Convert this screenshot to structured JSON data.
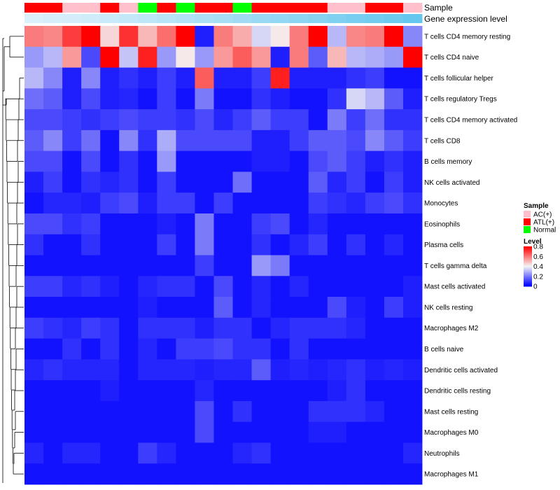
{
  "chart_data": {
    "type": "heatmap",
    "annotation_rows": [
      {
        "name": "Sample",
        "kind": "sample"
      },
      {
        "name": "Gene expression level",
        "kind": "expression"
      }
    ],
    "sample_groups": [
      "ATL(+)",
      "ATL(+)",
      "AC(+)",
      "AC(+)",
      "ATL(+)",
      "AC(+)",
      "Normal",
      "ATL(+)",
      "Normal",
      "ATL(+)",
      "ATL(+)",
      "Normal",
      "ATL(+)",
      "ATL(+)",
      "ATL(+)",
      "ATL(+)",
      "AC(+)",
      "AC(+)",
      "ATL(+)",
      "ATL(+)",
      "AC(+)"
    ],
    "expression_level": [
      0.05,
      0.08,
      0.1,
      0.14,
      0.18,
      0.22,
      0.27,
      0.31,
      0.36,
      0.4,
      0.45,
      0.5,
      0.55,
      0.6,
      0.65,
      0.7,
      0.75,
      0.8,
      0.85,
      0.9,
      0.95
    ],
    "rows": [
      "T cells CD4 memory resting",
      "T cells CD4 naive",
      "T cells follicular helper",
      "T cells regulatory  Tregs",
      "T cells CD4 memory activated",
      "T cells CD8",
      "B cells memory",
      "NK cells activated",
      "Monocytes",
      "Eosinophils",
      "Plasma cells",
      "T cells gamma delta",
      "Mast cells activated",
      "NK cells resting",
      "Macrophages M2",
      "B cells naive",
      "Dendritic cells activated",
      "Dendritic cells resting",
      "Mast cells resting",
      "Macrophages M0",
      "Neutrophils",
      "Macrophages M1"
    ],
    "values": [
      [
        0.6,
        0.58,
        0.7,
        0.8,
        0.45,
        0.72,
        0.5,
        0.62,
        0.8,
        0.05,
        0.6,
        0.52,
        0.35,
        0.42,
        0.6,
        0.8,
        0.3,
        0.58,
        0.6,
        0.8,
        0.22
      ],
      [
        0.25,
        0.3,
        0.55,
        0.12,
        0.8,
        0.32,
        0.75,
        0.25,
        0.42,
        0.25,
        0.55,
        0.65,
        0.55,
        0.05,
        0.6,
        0.15,
        0.5,
        0.3,
        0.28,
        0.25,
        0.8
      ],
      [
        0.3,
        0.22,
        0.05,
        0.22,
        0.05,
        0.08,
        0.05,
        0.1,
        0.05,
        0.65,
        0.05,
        0.05,
        0.1,
        0.75,
        0.05,
        0.05,
        0.05,
        0.08,
        0.1,
        0.03,
        0.03
      ],
      [
        0.18,
        0.15,
        0.05,
        0.12,
        0.05,
        0.06,
        0.03,
        0.1,
        0.03,
        0.2,
        0.03,
        0.03,
        0.08,
        0.05,
        0.03,
        0.03,
        0.08,
        0.35,
        0.3,
        0.15,
        0.05
      ],
      [
        0.12,
        0.12,
        0.1,
        0.08,
        0.1,
        0.12,
        0.1,
        0.1,
        0.08,
        0.12,
        0.06,
        0.1,
        0.15,
        0.1,
        0.1,
        0.03,
        0.2,
        0.1,
        0.18,
        0.08,
        0.08
      ],
      [
        0.15,
        0.22,
        0.1,
        0.18,
        0.03,
        0.22,
        0.08,
        0.28,
        0.12,
        0.12,
        0.12,
        0.12,
        0.05,
        0.05,
        0.1,
        0.15,
        0.15,
        0.12,
        0.22,
        0.15,
        0.1
      ],
      [
        0.12,
        0.12,
        0.03,
        0.12,
        0.03,
        0.08,
        0.03,
        0.25,
        0.03,
        0.03,
        0.03,
        0.03,
        0.05,
        0.05,
        0.03,
        0.12,
        0.15,
        0.1,
        0.05,
        0.08,
        0.05
      ],
      [
        0.05,
        0.1,
        0.03,
        0.08,
        0.06,
        0.08,
        0.03,
        0.1,
        0.03,
        0.03,
        0.03,
        0.18,
        0.03,
        0.03,
        0.03,
        0.15,
        0.06,
        0.1,
        0.03,
        0.1,
        0.05
      ],
      [
        0.03,
        0.06,
        0.06,
        0.05,
        0.1,
        0.12,
        0.05,
        0.1,
        0.1,
        0.03,
        0.1,
        0.03,
        0.03,
        0.03,
        0.03,
        0.1,
        0.08,
        0.06,
        0.1,
        0.12,
        0.08
      ],
      [
        0.12,
        0.12,
        0.08,
        0.1,
        0.03,
        0.03,
        0.03,
        0.05,
        0.03,
        0.2,
        0.03,
        0.03,
        0.1,
        0.12,
        0.03,
        0.06,
        0.03,
        0.03,
        0.03,
        0.03,
        0.03
      ],
      [
        0.08,
        0.03,
        0.03,
        0.08,
        0.03,
        0.03,
        0.03,
        0.1,
        0.03,
        0.2,
        0.03,
        0.03,
        0.08,
        0.03,
        0.06,
        0.1,
        0.03,
        0.08,
        0.03,
        0.06,
        0.03
      ],
      [
        0.03,
        0.03,
        0.03,
        0.03,
        0.03,
        0.03,
        0.03,
        0.03,
        0.03,
        0.1,
        0.03,
        0.03,
        0.25,
        0.2,
        0.03,
        0.03,
        0.03,
        0.03,
        0.03,
        0.03,
        0.03
      ],
      [
        0.1,
        0.1,
        0.06,
        0.08,
        0.05,
        0.03,
        0.06,
        0.08,
        0.08,
        0.03,
        0.12,
        0.03,
        0.06,
        0.03,
        0.06,
        0.03,
        0.03,
        0.03,
        0.03,
        0.03,
        0.05
      ],
      [
        0.03,
        0.03,
        0.03,
        0.03,
        0.03,
        0.03,
        0.05,
        0.03,
        0.03,
        0.03,
        0.15,
        0.03,
        0.06,
        0.03,
        0.03,
        0.03,
        0.12,
        0.05,
        0.03,
        0.1,
        0.05
      ],
      [
        0.1,
        0.08,
        0.06,
        0.1,
        0.08,
        0.03,
        0.08,
        0.08,
        0.08,
        0.05,
        0.08,
        0.08,
        0.03,
        0.06,
        0.08,
        0.08,
        0.08,
        0.06,
        0.03,
        0.03,
        0.03
      ],
      [
        0.03,
        0.03,
        0.08,
        0.03,
        0.08,
        0.03,
        0.06,
        0.03,
        0.1,
        0.1,
        0.12,
        0.08,
        0.08,
        0.03,
        0.08,
        0.03,
        0.03,
        0.03,
        0.03,
        0.03,
        0.03
      ],
      [
        0.06,
        0.08,
        0.06,
        0.06,
        0.06,
        0.03,
        0.06,
        0.06,
        0.06,
        0.05,
        0.06,
        0.06,
        0.15,
        0.05,
        0.06,
        0.05,
        0.06,
        0.08,
        0.05,
        0.06,
        0.05
      ],
      [
        0.03,
        0.03,
        0.03,
        0.03,
        0.05,
        0.03,
        0.03,
        0.03,
        0.03,
        0.06,
        0.03,
        0.03,
        0.03,
        0.03,
        0.03,
        0.03,
        0.05,
        0.08,
        0.03,
        0.03,
        0.03
      ],
      [
        0.03,
        0.03,
        0.03,
        0.03,
        0.03,
        0.03,
        0.03,
        0.03,
        0.03,
        0.12,
        0.03,
        0.08,
        0.03,
        0.03,
        0.03,
        0.08,
        0.08,
        0.08,
        0.06,
        0.03,
        0.03
      ],
      [
        0.03,
        0.03,
        0.03,
        0.03,
        0.03,
        0.03,
        0.03,
        0.03,
        0.03,
        0.12,
        0.03,
        0.03,
        0.03,
        0.03,
        0.03,
        0.05,
        0.05,
        0.03,
        0.03,
        0.03,
        0.03
      ],
      [
        0.06,
        0.03,
        0.06,
        0.06,
        0.03,
        0.03,
        0.1,
        0.06,
        0.03,
        0.03,
        0.03,
        0.06,
        0.08,
        0.03,
        0.03,
        0.03,
        0.03,
        0.03,
        0.03,
        0.03,
        0.06
      ],
      [
        0.03,
        0.03,
        0.03,
        0.03,
        0.03,
        0.03,
        0.03,
        0.03,
        0.03,
        0.03,
        0.03,
        0.03,
        0.03,
        0.03,
        0.03,
        0.03,
        0.03,
        0.03,
        0.03,
        0.03,
        0.03
      ]
    ],
    "color_scale": {
      "low": "#0000ff",
      "mid": "#f5f5f5",
      "high": "#ff0000",
      "min": 0,
      "max": 0.8
    },
    "legend": {
      "sample_title": "Sample",
      "sample_items": [
        {
          "label": "AC(+)",
          "color": "#ffc0cb"
        },
        {
          "label": "ATL(+)",
          "color": "#ff0000"
        },
        {
          "label": "Normal",
          "color": "#00ff00"
        }
      ],
      "level_title": "Level",
      "level_ticks": [
        "0.8",
        "0.6",
        "0.4",
        "0.2",
        "0"
      ],
      "level_tick_values": [
        0.8,
        0.6,
        0.4,
        0.2,
        0
      ]
    },
    "expression_colors": {
      "low": "#e0f2fb",
      "high": "#5ec5ed"
    },
    "dendrogram": "row clustering tree (left side)"
  }
}
